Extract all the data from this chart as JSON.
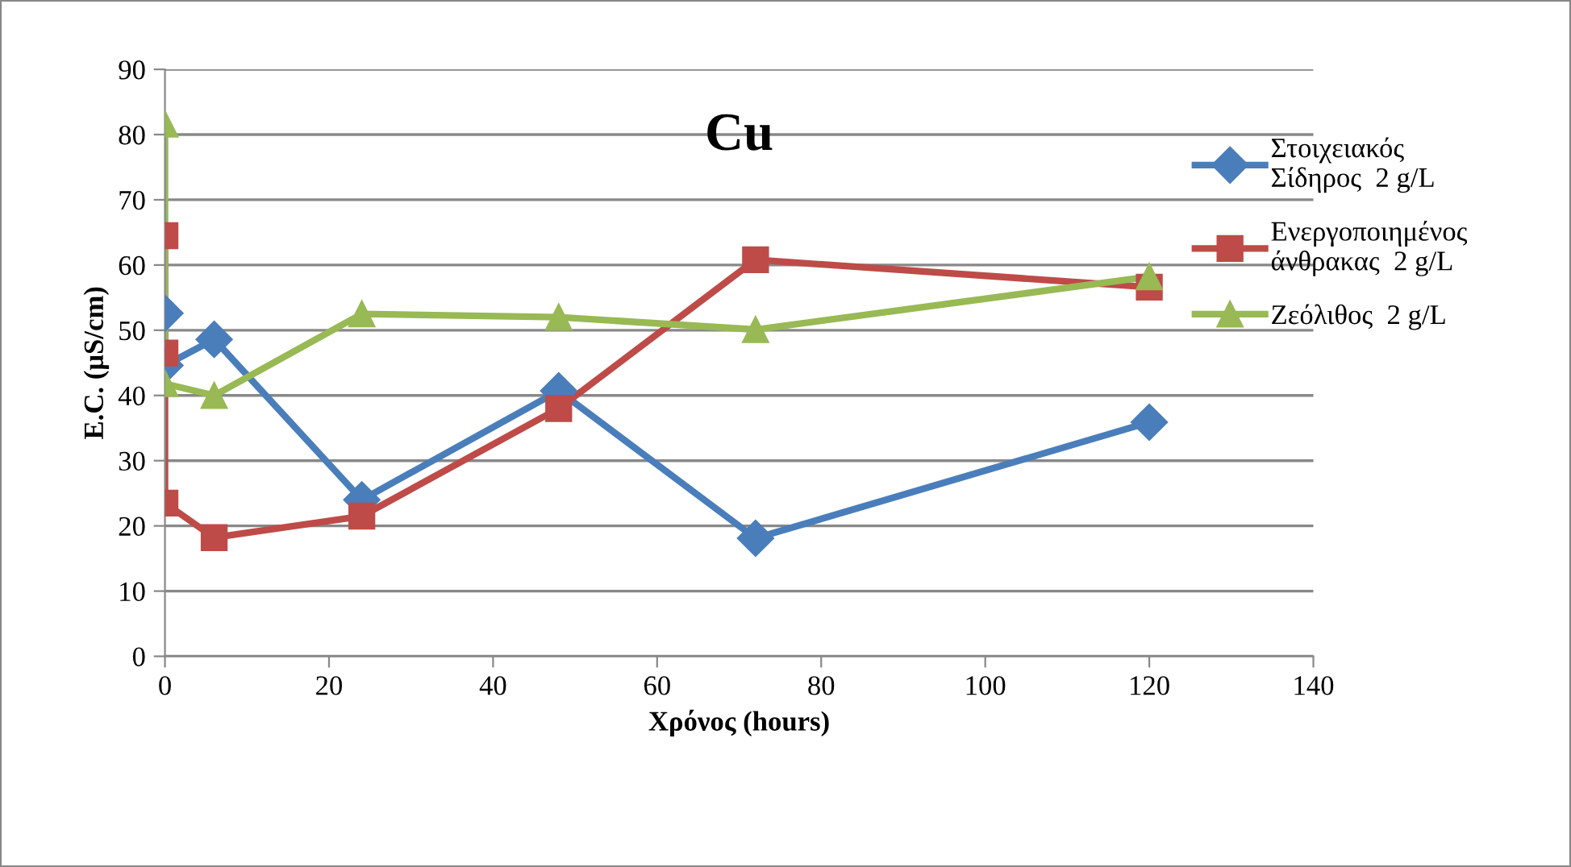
{
  "chart_data": {
    "type": "line",
    "title": "Cu",
    "xlabel": "Χρόνος (hours)",
    "ylabel": "E.C. (μS/cm)",
    "xlim": [
      0,
      140
    ],
    "xticks": [
      0,
      20,
      40,
      60,
      80,
      100,
      120,
      140
    ],
    "ylim": [
      0,
      90
    ],
    "yticks": [
      0,
      10,
      20,
      30,
      40,
      50,
      60,
      70,
      80,
      90
    ],
    "grid": "y",
    "legend": "right",
    "line_style": "solid",
    "series": [
      {
        "name": "Στοιχειακός Σίδηρος  2 g/L",
        "color": "#4a7ebb",
        "marker": "diamond",
        "x": [
          0,
          0,
          6,
          24,
          48,
          72,
          120
        ],
        "values": [
          52.6,
          44.6,
          48.6,
          24,
          40.7,
          18.1,
          35.9
        ]
      },
      {
        "name": "Ενεργοποιημένος άνθρακας  2 g/L",
        "color": "#be4b48",
        "marker": "square",
        "x": [
          0,
          0,
          0,
          6,
          24,
          48,
          72,
          120
        ],
        "values": [
          64.5,
          46.5,
          23.5,
          18.2,
          21.5,
          38,
          60.8,
          56.6
        ]
      },
      {
        "name": "Ζεόλιθος  2 g/L",
        "color": "#98b954",
        "marker": "triangle",
        "x": [
          0,
          0,
          6,
          24,
          48,
          72,
          120
        ],
        "values": [
          81.6,
          41.8,
          40,
          52.5,
          52,
          50.1,
          58.2
        ]
      }
    ]
  }
}
